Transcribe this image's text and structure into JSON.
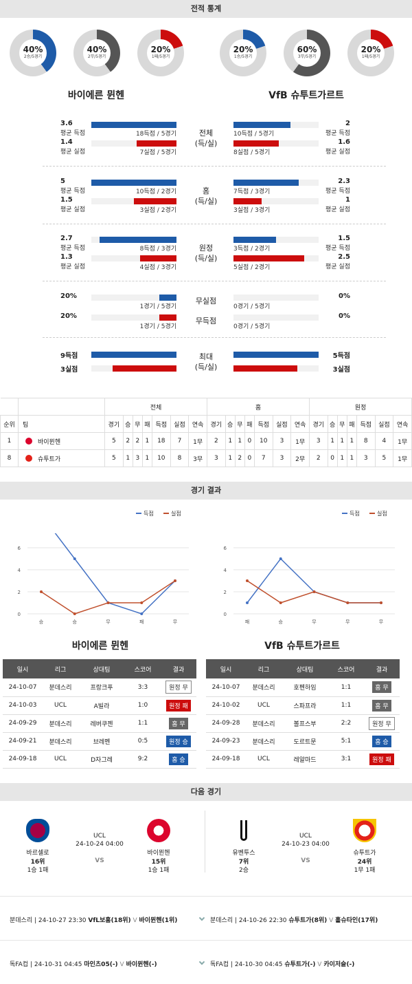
{
  "sections": {
    "stats": "전적 통계",
    "results": "경기 결과",
    "next": "다음 경기"
  },
  "teams": {
    "left": "바이에른 뮌헨",
    "right": "VfB 슈투트가르트"
  },
  "donuts": [
    {
      "pct": "40%",
      "sub": "2승/5경기",
      "color": "#1e5ba8",
      "value": 40
    },
    {
      "pct": "40%",
      "sub": "2무/5경기",
      "color": "#555555",
      "value": 40
    },
    {
      "pct": "20%",
      "sub": "1패/5경기",
      "color": "#cc0d0d",
      "value": 20
    },
    {
      "pct": "20%",
      "sub": "1승/5경기",
      "color": "#1e5ba8",
      "value": 20
    },
    {
      "pct": "60%",
      "sub": "3무/5경기",
      "color": "#555555",
      "value": 60
    },
    {
      "pct": "20%",
      "sub": "1패/5경기",
      "color": "#cc0d0d",
      "value": 20
    }
  ],
  "stat_groups": [
    {
      "center": [
        "전체",
        "(득/실)"
      ],
      "left": [
        {
          "num": "3.6",
          "lbl": "평균 득점",
          "txt": "18득점 / 5경기",
          "frac": 1.0
        },
        {
          "num": "1.4",
          "lbl": "평균 실점",
          "txt": "7실점 / 5경기",
          "frac": 0.47
        }
      ],
      "right": [
        {
          "num": "2",
          "lbl": "평균 득점",
          "txt": "10득점 / 5경기",
          "frac": 0.67
        },
        {
          "num": "1.6",
          "lbl": "평균 실점",
          "txt": "8실점 / 5경기",
          "frac": 0.53
        }
      ]
    },
    {
      "center": [
        "홈",
        "(득/실)"
      ],
      "left": [
        {
          "num": "5",
          "lbl": "평균 득점",
          "txt": "10득점 / 2경기",
          "frac": 1.0
        },
        {
          "num": "1.5",
          "lbl": "평균 실점",
          "txt": "3실점 / 2경기",
          "frac": 0.5
        }
      ],
      "right": [
        {
          "num": "2.3",
          "lbl": "평균 득점",
          "txt": "7득점 / 3경기",
          "frac": 0.77
        },
        {
          "num": "1",
          "lbl": "평균 실점",
          "txt": "3실점 / 3경기",
          "frac": 0.33
        }
      ]
    },
    {
      "center": [
        "원정",
        "(득/실)"
      ],
      "left": [
        {
          "num": "2.7",
          "lbl": "평균 득점",
          "txt": "8득점 / 3경기",
          "frac": 0.9
        },
        {
          "num": "1.3",
          "lbl": "평균 실점",
          "txt": "4실점 / 3경기",
          "frac": 0.43
        }
      ],
      "right": [
        {
          "num": "1.5",
          "lbl": "평균 득점",
          "txt": "3득점 / 2경기",
          "frac": 0.5
        },
        {
          "num": "2.5",
          "lbl": "평균 실점",
          "txt": "5실점 / 2경기",
          "frac": 0.83
        }
      ]
    }
  ],
  "nil_stats": [
    {
      "center": "무실점",
      "left_num": "20%",
      "left_txt": "1경기 / 5경기",
      "left_frac": 0.2,
      "right_num": "0%",
      "right_txt": "0경기 / 5경기",
      "right_frac": 0
    },
    {
      "center": "무득점",
      "left_num": "20%",
      "left_txt": "1경기 / 5경기",
      "left_frac": 0.2,
      "right_num": "0%",
      "right_txt": "0경기 / 5경기",
      "right_frac": 0
    }
  ],
  "max_stats": {
    "center": [
      "최대",
      "(득/실)"
    ],
    "left": [
      {
        "num": "9득점",
        "frac": 1.0
      },
      {
        "num": "3실점",
        "frac": 0.75
      }
    ],
    "right": [
      {
        "num": "5득점",
        "frac": 1.0
      },
      {
        "num": "3실점",
        "frac": 0.75
      }
    ]
  },
  "standings": {
    "groups": [
      "전체",
      "홈",
      "원정"
    ],
    "headers": [
      "순위",
      "팀",
      "경기",
      "승",
      "무",
      "패",
      "득점",
      "실점",
      "연속"
    ],
    "rows": [
      {
        "rank": "1",
        "team": "바이뮌헨",
        "logo_color": "#dc052d",
        "all": [
          "5",
          "2",
          "2",
          "1",
          "18",
          "7",
          "1무"
        ],
        "home": [
          "2",
          "1",
          "1",
          "0",
          "10",
          "3",
          "1무"
        ],
        "away": [
          "3",
          "1",
          "1",
          "1",
          "8",
          "4",
          "1무"
        ]
      },
      {
        "rank": "8",
        "team": "슈투트가",
        "logo_color": "#e32219",
        "all": [
          "5",
          "1",
          "3",
          "1",
          "10",
          "8",
          "3무"
        ],
        "home": [
          "3",
          "1",
          "2",
          "0",
          "7",
          "3",
          "2무"
        ],
        "away": [
          "2",
          "0",
          "1",
          "1",
          "3",
          "5",
          "1무"
        ]
      }
    ]
  },
  "chart_data": [
    {
      "type": "line",
      "categories": [
        "승",
        "승",
        "무",
        "패",
        "무"
      ],
      "series": [
        {
          "name": "득점",
          "values": [
            9,
            5,
            1,
            0,
            3
          ],
          "color": "#4472c4"
        },
        {
          "name": "실점",
          "values": [
            2,
            0,
            1,
            1,
            3
          ],
          "color": "#c0502d"
        }
      ],
      "ylim": [
        0,
        7
      ],
      "yticks": [
        "0",
        "2",
        "4",
        "6"
      ],
      "legend": "top-right"
    },
    {
      "type": "line",
      "categories": [
        "패",
        "승",
        "무",
        "무",
        "무"
      ],
      "series": [
        {
          "name": "득점",
          "values": [
            1,
            5,
            2,
            1,
            1
          ],
          "color": "#4472c4"
        },
        {
          "name": "실점",
          "values": [
            3,
            1,
            2,
            1,
            1
          ],
          "color": "#c0502d"
        }
      ],
      "ylim": [
        0,
        7
      ],
      "yticks": [
        "0",
        "2",
        "4",
        "6"
      ],
      "legend": "top-right"
    }
  ],
  "results_headers": [
    "일시",
    "리그",
    "상대팀",
    "스코어",
    "결과"
  ],
  "results_left": [
    {
      "date": "24-10-07",
      "league": "분데스리",
      "opp": "프랑크푸",
      "score": "3:3",
      "result": "원정 무",
      "style": "outline"
    },
    {
      "date": "24-10-03",
      "league": "UCL",
      "opp": "A빌라",
      "score": "1:0",
      "result": "원정 패",
      "style": "red"
    },
    {
      "date": "24-09-29",
      "league": "분데스리",
      "opp": "레버쿠젠",
      "score": "1:1",
      "result": "홈 무",
      "style": "gray"
    },
    {
      "date": "24-09-21",
      "league": "분데스리",
      "opp": "브레멘",
      "score": "0:5",
      "result": "원정 승",
      "style": "blue"
    },
    {
      "date": "24-09-18",
      "league": "UCL",
      "opp": "D자그레",
      "score": "9:2",
      "result": "홈 승",
      "style": "blue"
    }
  ],
  "results_right": [
    {
      "date": "24-10-07",
      "league": "분데스리",
      "opp": "호펜하임",
      "score": "1:1",
      "result": "홈 무",
      "style": "gray"
    },
    {
      "date": "24-10-02",
      "league": "UCL",
      "opp": "스파프라",
      "score": "1:1",
      "result": "홈 무",
      "style": "gray"
    },
    {
      "date": "24-09-28",
      "league": "분데스리",
      "opp": "볼프스부",
      "score": "2:2",
      "result": "원정 무",
      "style": "outline"
    },
    {
      "date": "24-09-23",
      "league": "분데스리",
      "opp": "도르트문",
      "score": "5:1",
      "result": "홈 승",
      "style": "blue"
    },
    {
      "date": "24-09-18",
      "league": "UCL",
      "opp": "레알마드",
      "score": "3:1",
      "result": "원정 패",
      "style": "red"
    }
  ],
  "next_matches": [
    {
      "league": "UCL",
      "datetime": "24-10-24 04:00",
      "vs": "VS",
      "home": {
        "name": "바르셀로",
        "rank": "16위",
        "record": "1승 1패"
      },
      "away": {
        "name": "바이뮌헨",
        "rank": "15위",
        "record": "1승 1패"
      }
    },
    {
      "league": "UCL",
      "datetime": "24-10-23 04:00",
      "vs": "VS",
      "home": {
        "name": "유벤투스",
        "rank": "7위",
        "record": "2승"
      },
      "away": {
        "name": "슈투트가",
        "rank": "24위",
        "record": "1무 1패"
      }
    }
  ],
  "upcoming": [
    {
      "left": {
        "league": "분데스리 | 24-10-27 23:30",
        "home": "VfL보훔(18위)",
        "vs": "V",
        "away": "바이뮌헨(1위)"
      },
      "right": {
        "league": "분데스리 | 24-10-26 22:30",
        "home": "슈투트가(8위)",
        "vs": "V",
        "away": "홀슈타인(17위)"
      }
    },
    {
      "left": {
        "league": "독FA컵 | 24-10-31 04:45",
        "home": "마인츠05(-)",
        "vs": "V",
        "away": "바이뮌헨(-)"
      },
      "right": {
        "league": "독FA컵 | 24-10-30 04:45",
        "home": "슈투트가(-)",
        "vs": "V",
        "away": "카이저슬(-)"
      }
    }
  ]
}
